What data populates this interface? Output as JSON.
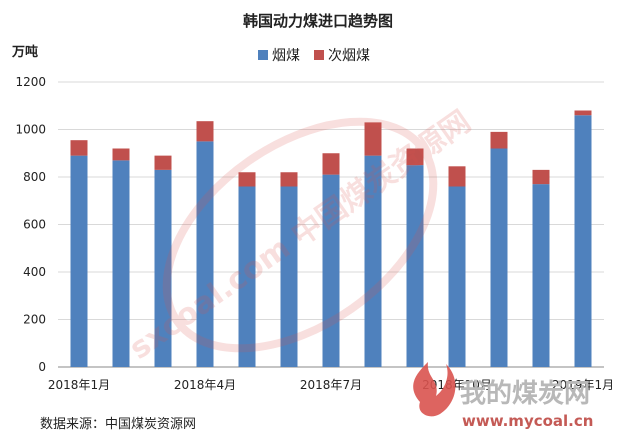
{
  "chart_data": {
    "type": "bar",
    "stacked": true,
    "title": "韩国动力煤进口趋势图",
    "ylabel": "万吨",
    "ylim": [
      0,
      1200
    ],
    "yticks": [
      0,
      200,
      400,
      600,
      800,
      1000,
      1200
    ],
    "grid": true,
    "legend_position": "top",
    "categories": [
      "2018-01",
      "2018-02",
      "2018-03",
      "2018-04",
      "2018-05",
      "2018-06",
      "2018-07",
      "2018-08",
      "2018-09",
      "2018-10",
      "2018-11",
      "2018-12",
      "2019-01"
    ],
    "x_tick_labels": [
      {
        "index": 0,
        "label": "2018年1月"
      },
      {
        "index": 3,
        "label": "2018年4月"
      },
      {
        "index": 6,
        "label": "2018年7月"
      },
      {
        "index": 9,
        "label": "2018年10月"
      },
      {
        "index": 12,
        "label": "2019年1月"
      }
    ],
    "series": [
      {
        "name": "烟煤",
        "color": "#4f81bd",
        "values": [
          890,
          870,
          830,
          950,
          760,
          760,
          810,
          890,
          850,
          760,
          920,
          770,
          1060
        ]
      },
      {
        "name": "次烟煤",
        "color": "#c0504d",
        "values": [
          65,
          50,
          60,
          85,
          60,
          60,
          90,
          140,
          70,
          85,
          70,
          60,
          20
        ]
      }
    ]
  },
  "source_text": "数据来源：中国煤炭资源网",
  "watermark": {
    "text_center": "sxcoal.com 中国煤炭资源网",
    "logo_cn": "我的煤炭网",
    "logo_url": "www.mycoal.cn",
    "colors": {
      "red": "#d9534f",
      "gray": "#9a9a9a"
    }
  }
}
